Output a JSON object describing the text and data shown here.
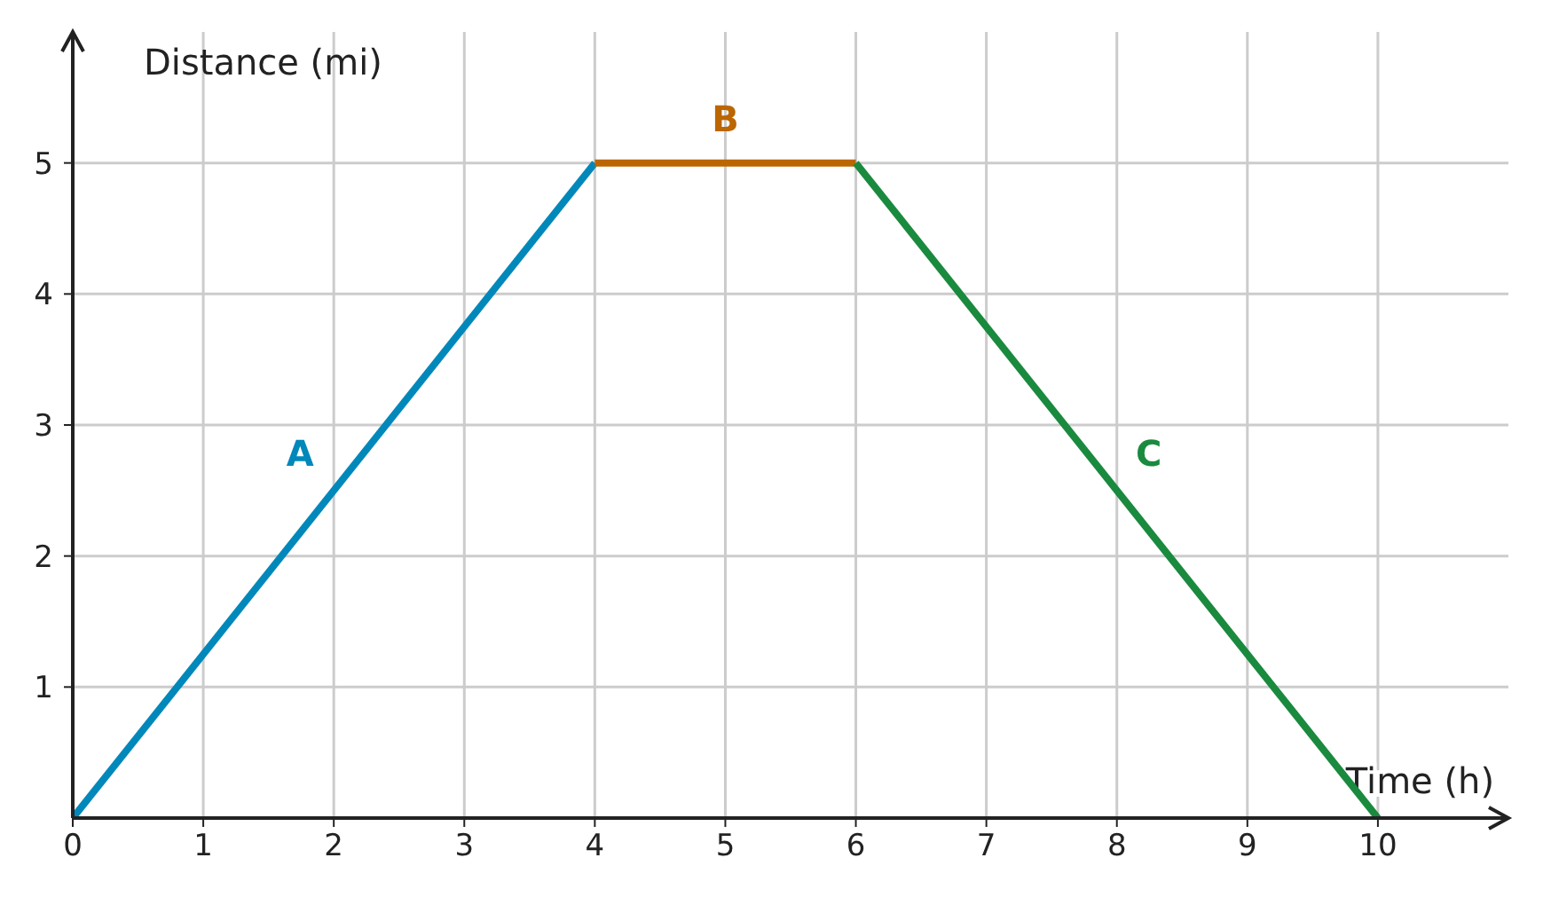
{
  "chart_data": {
    "type": "line",
    "xlabel": "Time (h)",
    "ylabel": "Distance (mi)",
    "xlim": [
      0,
      11
    ],
    "ylim": [
      0,
      6
    ],
    "xticks": [
      0,
      1,
      2,
      3,
      4,
      5,
      6,
      7,
      8,
      9,
      10
    ],
    "yticks": [
      1,
      2,
      3,
      4,
      5
    ],
    "grid": true,
    "marker": "none",
    "line_style": "solid",
    "series": [
      {
        "name": "A",
        "color": "#0088bb",
        "x": [
          0,
          4
        ],
        "values": [
          0,
          5
        ]
      },
      {
        "name": "B",
        "color": "#bb6600",
        "x": [
          4,
          6
        ],
        "values": [
          5,
          5
        ]
      },
      {
        "name": "C",
        "color": "#1a8a3e",
        "x": [
          6,
          10
        ],
        "values": [
          5,
          0
        ]
      }
    ]
  }
}
